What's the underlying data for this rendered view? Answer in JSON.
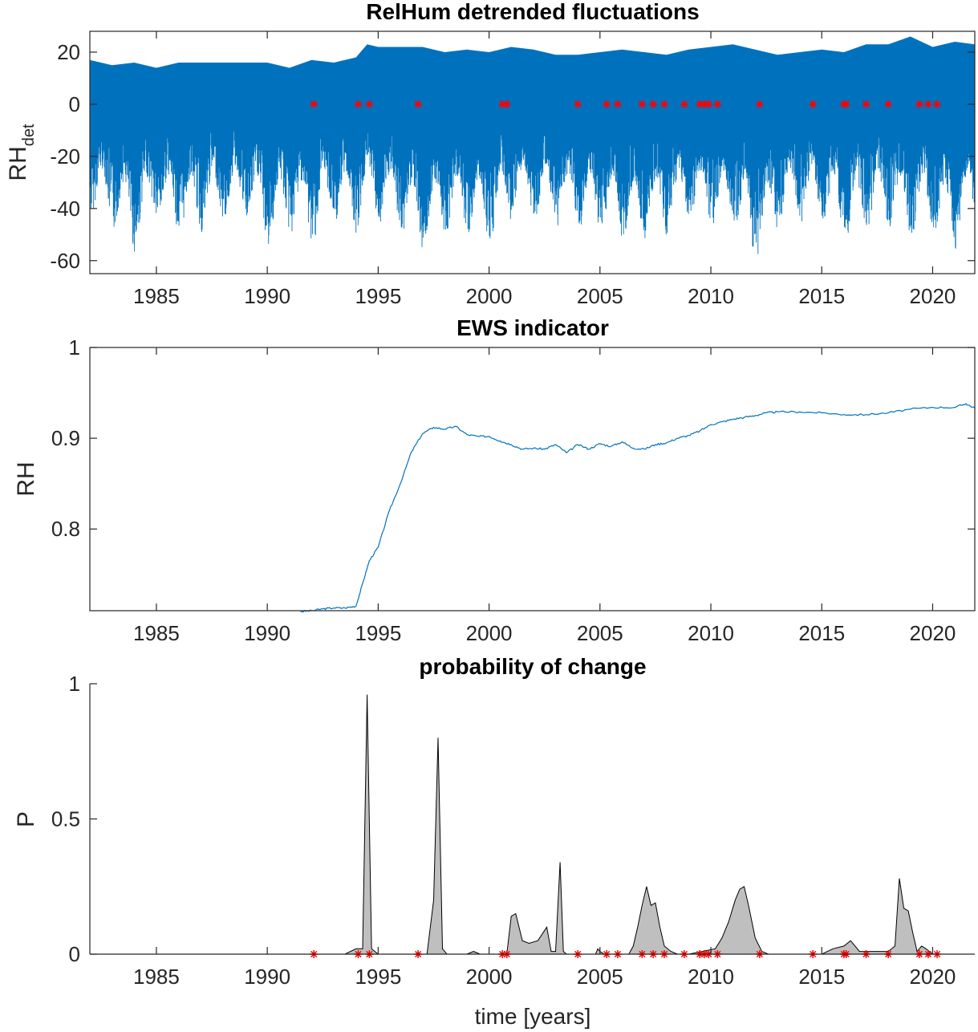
{
  "chart_data": [
    {
      "type": "line",
      "title": "RelHum detrended fluctuations",
      "ylabel": "RH",
      "ylabel_sub": "det",
      "xlim": [
        1982,
        2021.9
      ],
      "ylim": [
        -65,
        28
      ],
      "xticks": [
        1985,
        1990,
        1995,
        2000,
        2005,
        2010,
        2015,
        2020
      ],
      "yticks": [
        -60,
        -40,
        -20,
        0,
        20
      ],
      "series_color": "#0072BD",
      "envelope": {
        "x": [
          1982,
          1983,
          1984,
          1985,
          1986,
          1987,
          1988,
          1989,
          1990,
          1991,
          1992,
          1993,
          1994,
          1994.5,
          1995,
          1996,
          1997,
          1998,
          1999,
          2000,
          2001,
          2002,
          2003,
          2004,
          2005,
          2006,
          2007,
          2008,
          2009,
          2010,
          2011,
          2012,
          2013,
          2014,
          2015,
          2016,
          2017,
          2018,
          2019,
          2020,
          2021,
          2021.9
        ],
        "upper": [
          17,
          15,
          16,
          14,
          16,
          16,
          16,
          16,
          16,
          14,
          17,
          16,
          18,
          23,
          22,
          22,
          22,
          20,
          21,
          20,
          22,
          21,
          19,
          19,
          20,
          21,
          20,
          19,
          21,
          22,
          23,
          21,
          19,
          20,
          21,
          20,
          23,
          23,
          26,
          22,
          24,
          23
        ],
        "lower": [
          -42,
          -48,
          -58,
          -45,
          -52,
          -50,
          -45,
          -44,
          -56,
          -50,
          -56,
          -45,
          -50,
          -40,
          -47,
          -50,
          -57,
          -50,
          -50,
          -55,
          -45,
          -44,
          -47,
          -50,
          -50,
          -52,
          -54,
          -52,
          -44,
          -48,
          -47,
          -64,
          -48,
          -46,
          -45,
          -55,
          -50,
          -47,
          -52,
          -50,
          -58,
          -45
        ]
      },
      "markers": {
        "color": "#FF0000",
        "y": 0,
        "x": [
          1992.1,
          1994.1,
          1994.6,
          1996.8,
          2000.6,
          2000.8,
          2004.0,
          2005.3,
          2005.8,
          2006.9,
          2007.4,
          2007.9,
          2008.8,
          2009.5,
          2009.7,
          2009.9,
          2010.3,
          2012.2,
          2014.6,
          2016.0,
          2016.1,
          2017.0,
          2018.0,
          2019.4,
          2019.8,
          2020.2
        ]
      }
    },
    {
      "type": "line",
      "title": "EWS indicator",
      "ylabel": "RH",
      "xlim": [
        1982,
        2021.9
      ],
      "ylim": [
        0.71,
        1.0
      ],
      "xticks": [
        1985,
        1990,
        1995,
        2000,
        2005,
        2010,
        2015,
        2020
      ],
      "yticks": [
        0.8,
        0.9,
        1
      ],
      "ytick_labels": [
        "0.8",
        "0.9",
        "1"
      ],
      "series_color": "#0072BD",
      "x": [
        1991.5,
        1992.0,
        1992.5,
        1993.0,
        1993.5,
        1994.0,
        1994.3,
        1994.6,
        1995.0,
        1995.5,
        1996.0,
        1996.5,
        1997.0,
        1997.5,
        1998.0,
        1998.5,
        1999.0,
        1999.5,
        2000.0,
        2000.5,
        2001.0,
        2001.5,
        2002.0,
        2002.5,
        2003.0,
        2003.5,
        2004.0,
        2004.5,
        2005.0,
        2005.5,
        2006.0,
        2006.5,
        2007.0,
        2007.5,
        2008.0,
        2008.5,
        2009.0,
        2009.5,
        2010.0,
        2010.5,
        2011.0,
        2011.5,
        2012.0,
        2012.5,
        2013.0,
        2014.0,
        2015.0,
        2016.0,
        2017.0,
        2018.0,
        2019.0,
        2020.0,
        2021.0,
        2021.5,
        2021.9
      ],
      "y": [
        0.709,
        0.71,
        0.712,
        0.713,
        0.713,
        0.715,
        0.74,
        0.765,
        0.78,
        0.82,
        0.85,
        0.885,
        0.905,
        0.912,
        0.91,
        0.913,
        0.904,
        0.902,
        0.902,
        0.897,
        0.893,
        0.888,
        0.889,
        0.888,
        0.893,
        0.884,
        0.893,
        0.888,
        0.894,
        0.891,
        0.896,
        0.889,
        0.888,
        0.893,
        0.895,
        0.9,
        0.903,
        0.908,
        0.915,
        0.918,
        0.921,
        0.923,
        0.925,
        0.928,
        0.929,
        0.929,
        0.928,
        0.926,
        0.926,
        0.928,
        0.932,
        0.934,
        0.934,
        0.938,
        0.933
      ]
    },
    {
      "type": "area",
      "title": "probability of change",
      "ylabel": "P",
      "xlabel": "time [years]",
      "xlim": [
        1982,
        2021.9
      ],
      "ylim": [
        0,
        1
      ],
      "xticks": [
        1985,
        1990,
        1995,
        2000,
        2005,
        2010,
        2015,
        2020
      ],
      "yticks": [
        0,
        0.5,
        1
      ],
      "ytick_labels": [
        "0",
        "0.5",
        "1"
      ],
      "fill_color": "#BFBFBF",
      "x": [
        1991.5,
        1993.5,
        1994.0,
        1994.3,
        1994.5,
        1994.7,
        1995.0,
        1997.2,
        1997.5,
        1997.7,
        1997.9,
        1998.1,
        1999.0,
        1999.3,
        1999.6,
        2000.8,
        2001.0,
        2001.2,
        2001.5,
        2001.8,
        2002.2,
        2002.6,
        2002.8,
        2003.0,
        2003.2,
        2003.35,
        2003.5,
        2003.7,
        2003.9,
        2004.8,
        2004.9,
        2005.0,
        2005.2,
        2006.3,
        2006.5,
        2006.7,
        2006.9,
        2007.1,
        2007.3,
        2007.5,
        2007.7,
        2007.9,
        2008.2,
        2008.5,
        2009.0,
        2010.2,
        2010.5,
        2010.8,
        2011.1,
        2011.3,
        2011.5,
        2011.7,
        2012.0,
        2012.3,
        2012.6,
        2013.0,
        2015.0,
        2015.5,
        2016.0,
        2016.3,
        2016.7,
        2017.0,
        2018.0,
        2018.3,
        2018.5,
        2018.7,
        2018.9,
        2019.1,
        2019.3,
        2019.5,
        2019.7,
        2020.0,
        2020.3,
        2021.9
      ],
      "y": [
        0,
        0,
        0.02,
        0.02,
        0.96,
        0.02,
        0,
        0,
        0.2,
        0.8,
        0.02,
        0,
        0,
        0.01,
        0,
        0,
        0.14,
        0.15,
        0.05,
        0.04,
        0.05,
        0.1,
        0.01,
        0.01,
        0.34,
        0.01,
        0,
        0,
        0,
        0,
        0.02,
        0.01,
        0,
        0,
        0.03,
        0.1,
        0.18,
        0.25,
        0.18,
        0.19,
        0.1,
        0.03,
        0.01,
        0,
        0,
        0.02,
        0.06,
        0.12,
        0.2,
        0.24,
        0.25,
        0.18,
        0.06,
        0.01,
        0,
        0,
        0,
        0.02,
        0.03,
        0.05,
        0.01,
        0.01,
        0.01,
        0.03,
        0.28,
        0.17,
        0.16,
        0.08,
        0.01,
        0.03,
        0.02,
        0,
        0,
        0
      ],
      "markers": {
        "color": "#FF0000",
        "y": 0,
        "x": [
          1992.1,
          1994.1,
          1994.6,
          1996.8,
          2000.6,
          2000.8,
          2004.0,
          2005.3,
          2005.8,
          2006.9,
          2007.4,
          2007.9,
          2008.8,
          2009.5,
          2009.7,
          2009.9,
          2010.3,
          2012.2,
          2014.6,
          2016.0,
          2016.1,
          2017.0,
          2018.0,
          2019.4,
          2019.8,
          2020.2
        ]
      }
    }
  ]
}
